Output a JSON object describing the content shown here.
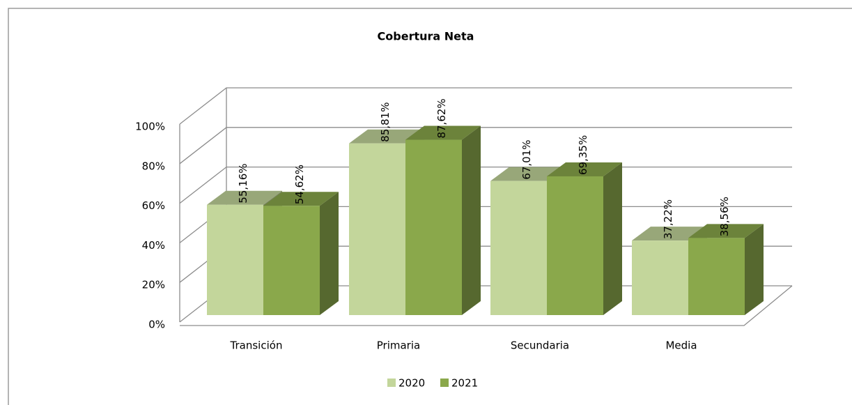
{
  "chart_data": {
    "type": "bar3d",
    "title": "Cobertura Neta",
    "categories": [
      "Transición",
      "Primaria",
      "Secundaria",
      "Media"
    ],
    "series": [
      {
        "name": "2020",
        "color": "#c3d69b",
        "values": [
          55.16,
          85.81,
          67.01,
          37.22
        ],
        "value_labels": [
          "55,16%",
          "85,81%",
          "67,01%",
          "37,22%"
        ]
      },
      {
        "name": "2021",
        "color": "#8aa84b",
        "values": [
          54.62,
          87.62,
          69.35,
          38.56
        ],
        "value_labels": [
          "54,62%",
          "87,62%",
          "69,35%",
          "38,56%"
        ]
      }
    ],
    "ylim": [
      0,
      100
    ],
    "yticks": [
      {
        "value": 0,
        "label": "0%"
      },
      {
        "value": 20,
        "label": "20%"
      },
      {
        "value": 40,
        "label": "40%"
      },
      {
        "value": 60,
        "label": "60%"
      },
      {
        "value": 80,
        "label": "80%"
      },
      {
        "value": 100,
        "label": "100%"
      }
    ],
    "grid": true,
    "legend": "bottom"
  }
}
